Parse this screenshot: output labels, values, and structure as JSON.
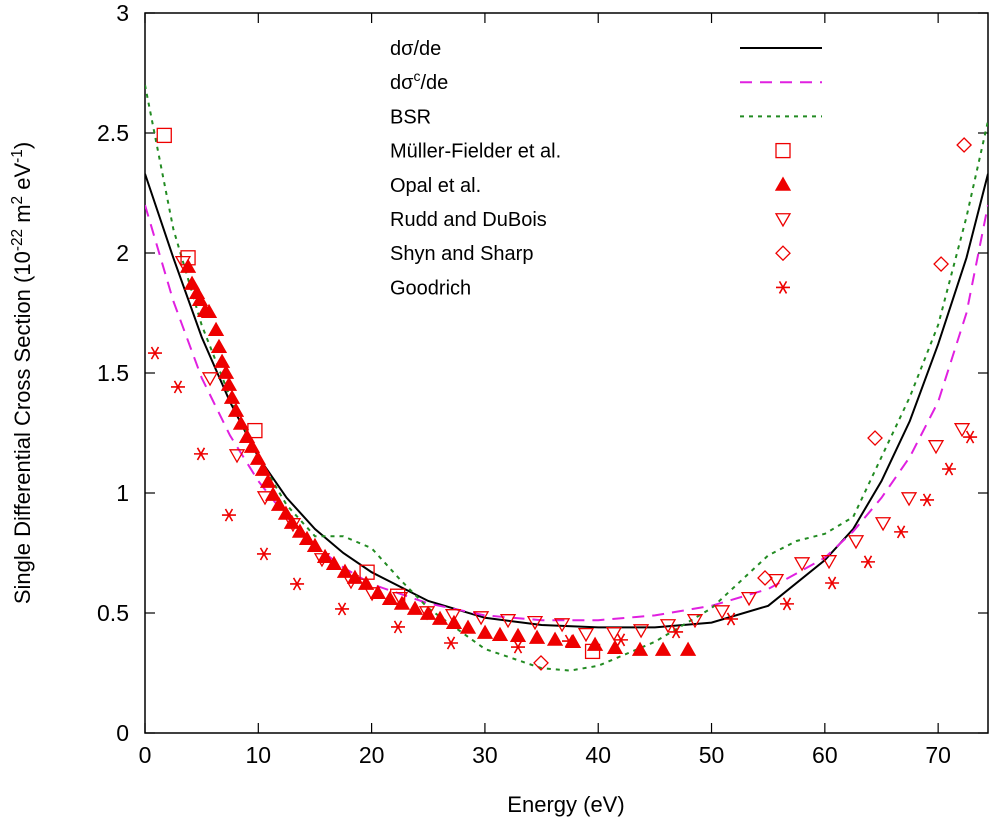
{
  "chart_data": {
    "type": "line",
    "xlabel": "Energy (eV)",
    "ylabel_parts": [
      {
        "text": "Single Differential Cross Section (10"
      },
      {
        "text": "-22",
        "sup": true
      },
      {
        "text": " m"
      },
      {
        "text": "2",
        "sup": true
      },
      {
        "text": " eV"
      },
      {
        "text": "-1",
        "sup": true
      },
      {
        "text": ")"
      }
    ],
    "xlim": [
      0,
      74.4
    ],
    "ylim": [
      0,
      3
    ],
    "xticks": [
      0,
      10,
      20,
      30,
      40,
      50,
      60,
      70
    ],
    "yticks": [
      0,
      0.5,
      1,
      1.5,
      2,
      2.5,
      3
    ],
    "series": [
      {
        "name": "dσ/de",
        "type": "line",
        "style": "solid",
        "color": "#000000",
        "x": [
          0,
          2.5,
          5,
          7.5,
          10,
          12.5,
          15,
          17.5,
          20,
          25,
          30,
          35,
          40,
          45,
          50,
          55,
          60,
          62.5,
          65,
          67.5,
          70,
          72.5,
          74.4
        ],
        "values": [
          2.33,
          1.98,
          1.65,
          1.38,
          1.15,
          0.98,
          0.85,
          0.75,
          0.67,
          0.55,
          0.48,
          0.45,
          0.44,
          0.44,
          0.46,
          0.53,
          0.72,
          0.85,
          1.05,
          1.3,
          1.62,
          1.98,
          2.33
        ]
      },
      {
        "name_parts": [
          {
            "text": "dσ"
          },
          {
            "text": "c",
            "sup": true
          },
          {
            "text": "/de"
          }
        ],
        "type": "line",
        "style": "dashed",
        "color": "#e020e0",
        "x": [
          0,
          2.5,
          5,
          7.5,
          10,
          12.5,
          15,
          17.5,
          20,
          25,
          30,
          35,
          40,
          45,
          50,
          55,
          60,
          62.5,
          65,
          67.5,
          70,
          72.5,
          74.4
        ],
        "values": [
          2.2,
          1.8,
          1.48,
          1.24,
          1.05,
          0.9,
          0.78,
          0.69,
          0.62,
          0.54,
          0.49,
          0.47,
          0.47,
          0.49,
          0.53,
          0.6,
          0.73,
          0.84,
          0.98,
          1.15,
          1.38,
          1.75,
          2.2
        ]
      },
      {
        "name": "BSR",
        "type": "line",
        "style": "dotted",
        "color": "#228b22",
        "x": [
          0,
          2.5,
          5,
          7.5,
          10,
          12.5,
          15,
          17.5,
          20,
          22.5,
          25,
          30,
          35,
          37.5,
          40,
          45,
          50,
          52.5,
          55,
          57.5,
          60,
          62.5,
          65,
          67.5,
          70,
          72.5,
          74.4
        ],
        "values": [
          2.7,
          2.1,
          1.7,
          1.4,
          1.15,
          0.95,
          0.82,
          0.82,
          0.77,
          0.64,
          0.52,
          0.35,
          0.27,
          0.26,
          0.28,
          0.38,
          0.52,
          0.63,
          0.74,
          0.8,
          0.83,
          0.9,
          1.15,
          1.4,
          1.7,
          2.15,
          2.55
        ]
      },
      {
        "name": "Müller-Fielder et al.",
        "type": "scatter",
        "marker": "square",
        "color": "#ee0000",
        "x": [
          1.7,
          3.8,
          9.7,
          19.6,
          22.3,
          39.5
        ],
        "values": [
          2.49,
          1.98,
          1.26,
          0.67,
          0.57,
          0.34
        ]
      },
      {
        "name": "Opal et al.",
        "type": "scatter",
        "marker": "triangle-filled",
        "color": "#ee0000",
        "x": [
          3.8,
          4.15,
          4.59,
          4.85,
          5.3,
          5.65,
          6.27,
          6.53,
          6.8,
          7.15,
          7.41,
          7.68,
          8.03,
          8.47,
          9.0,
          9.44,
          9.97,
          10.41,
          10.86,
          11.3,
          11.83,
          12.44,
          12.97,
          13.68,
          14.3,
          15.0,
          15.89,
          16.68,
          17.65,
          18.53,
          19.51,
          20.56,
          21.62,
          22.68,
          23.83,
          24.98,
          26.04,
          27.27,
          28.51,
          30.01,
          31.33,
          32.92,
          34.6,
          36.19,
          37.78,
          39.72,
          41.48,
          43.69,
          45.72,
          47.93
        ],
        "values": [
          1.942,
          1.871,
          1.833,
          1.804,
          1.758,
          1.754,
          1.679,
          1.608,
          1.546,
          1.5,
          1.45,
          1.396,
          1.342,
          1.288,
          1.233,
          1.192,
          1.142,
          1.096,
          1.046,
          0.992,
          0.95,
          0.913,
          0.875,
          0.838,
          0.808,
          0.779,
          0.733,
          0.704,
          0.671,
          0.646,
          0.621,
          0.583,
          0.558,
          0.538,
          0.517,
          0.496,
          0.475,
          0.458,
          0.438,
          0.417,
          0.408,
          0.404,
          0.396,
          0.388,
          0.379,
          0.367,
          0.354,
          0.346,
          0.346,
          0.346
        ]
      },
      {
        "name": "Rudd and DuBois",
        "type": "scatter",
        "marker": "triangle-down",
        "color": "#ee0000",
        "x": [
          3.35,
          5.74,
          8.12,
          10.59,
          13.06,
          15.62,
          18.18,
          20.04,
          22.51,
          24.89,
          27.19,
          29.66,
          32.04,
          34.42,
          36.81,
          38.92,
          41.39,
          43.78,
          46.16,
          48.54,
          50.93,
          53.31,
          55.69,
          57.99,
          60.37,
          62.75,
          65.14,
          67.43,
          69.81,
          72.11
        ],
        "values": [
          1.963,
          1.479,
          1.158,
          0.983,
          0.871,
          0.725,
          0.633,
          0.583,
          0.563,
          0.504,
          0.492,
          0.483,
          0.471,
          0.463,
          0.454,
          0.413,
          0.417,
          0.429,
          0.45,
          0.471,
          0.508,
          0.563,
          0.638,
          0.708,
          0.717,
          0.8,
          0.875,
          0.979,
          1.196,
          1.267
        ]
      },
      {
        "name": "Shyn and Sharp",
        "type": "scatter",
        "marker": "diamond",
        "color": "#ee0000",
        "x": [
          34.95,
          54.72,
          64.43,
          70.26,
          72.29
        ],
        "values": [
          0.292,
          0.646,
          1.229,
          1.954,
          2.45
        ]
      },
      {
        "name": "Goodrich",
        "type": "scatter",
        "marker": "asterisk",
        "color": "#ee0000",
        "x": [
          0.88,
          2.91,
          4.94,
          7.41,
          10.5,
          13.42,
          17.39,
          22.33,
          27.01,
          32.92,
          37.42,
          42.01,
          46.87,
          51.72,
          56.66,
          60.64,
          63.81,
          66.73,
          69.02,
          70.96,
          72.82
        ],
        "values": [
          1.583,
          1.442,
          1.163,
          0.908,
          0.746,
          0.621,
          0.517,
          0.442,
          0.375,
          0.358,
          0.383,
          0.388,
          0.421,
          0.475,
          0.538,
          0.625,
          0.713,
          0.838,
          0.971,
          1.1,
          1.233
        ]
      }
    ]
  }
}
